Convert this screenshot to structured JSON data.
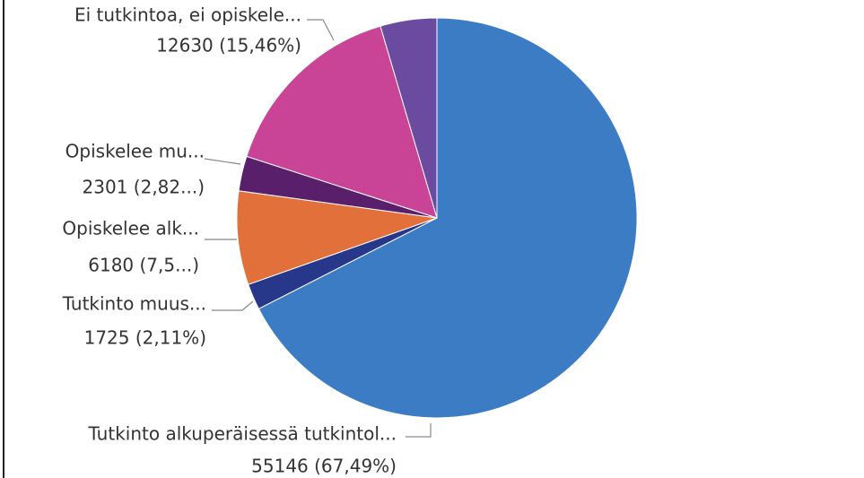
{
  "chart_data": {
    "type": "pie",
    "categories": [
      "Tutkinto alkuperäisessä tutkintol...",
      "Tutkinto muus...",
      "Opiskelee alk...",
      "Opiskelee mu...",
      "Ei tutkintoa, ei opiskele...",
      null
    ],
    "values": [
      55146,
      1725,
      6180,
      2301,
      12630,
      3728
    ],
    "value_labels": [
      "55146 (67,49%)",
      "1725 (2,11%)",
      "6180 (7,5...)",
      "2301 (2,82...)",
      "12630 (15,46%)",
      null
    ],
    "colors": [
      "#3b7cc4",
      "#27378a",
      "#e2703a",
      "#5a1f6a",
      "#c94497",
      "#6a4b9f"
    ]
  }
}
